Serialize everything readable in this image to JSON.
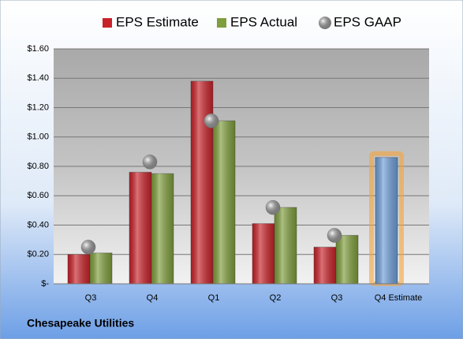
{
  "chart_data": {
    "type": "bar",
    "categories": [
      "Q3",
      "Q4",
      "Q1",
      "Q2",
      "Q3",
      "Q4 Estimate"
    ],
    "series": [
      {
        "name": "EPS Estimate",
        "color": "#c8232a",
        "values": [
          0.2,
          0.76,
          1.38,
          0.41,
          0.25,
          0.86
        ]
      },
      {
        "name": "EPS Actual",
        "color": "#7f9e3c",
        "values": [
          0.21,
          0.75,
          1.11,
          0.52,
          0.33,
          null
        ]
      },
      {
        "name": "EPS GAAP",
        "color": "#a8a8a8",
        "marker": "circle",
        "values": [
          0.25,
          0.83,
          1.11,
          0.52,
          0.33,
          null
        ]
      }
    ],
    "highlight": {
      "category": "Q4 Estimate",
      "color": "#6f9fd8",
      "glow": "#f5a43a"
    },
    "ylim": [
      0,
      1.6
    ],
    "yticks": [
      {
        "value": 0,
        "label": "$-"
      },
      {
        "value": 0.2,
        "label": "$0.20"
      },
      {
        "value": 0.4,
        "label": "$0.40"
      },
      {
        "value": 0.6,
        "label": "$0.60"
      },
      {
        "value": 0.8,
        "label": "$0.80"
      },
      {
        "value": 1.0,
        "label": "$1.00"
      },
      {
        "value": 1.2,
        "label": "$1.20"
      },
      {
        "value": 1.4,
        "label": "$1.40"
      },
      {
        "value": 1.6,
        "label": "$1.60"
      }
    ],
    "grid": true,
    "legend": "top",
    "footer": "Chesapeake Utilities"
  }
}
